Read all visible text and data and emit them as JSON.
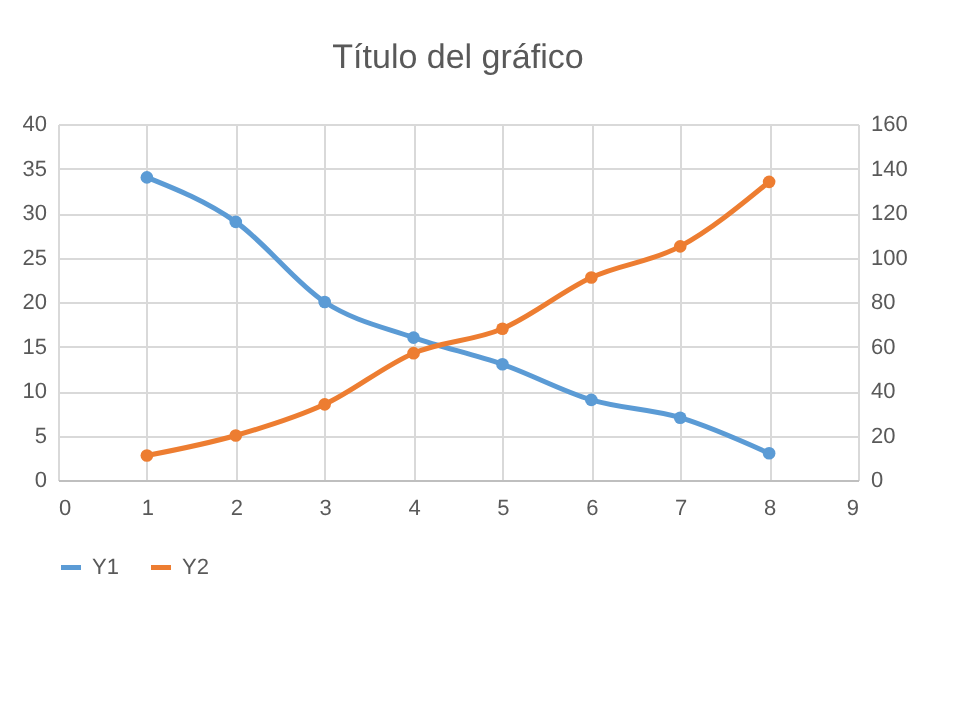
{
  "chart_data": {
    "type": "line",
    "title": "Título del gráfico",
    "x": [
      1,
      2,
      3,
      4,
      5,
      6,
      7,
      8
    ],
    "series": [
      {
        "name": "Y1",
        "color": "#5b9bd5",
        "values": [
          34,
          29,
          20,
          16,
          13,
          9,
          7,
          3
        ]
      },
      {
        "name": "Y2",
        "color": "#ed7d31",
        "axis": "y2",
        "values": [
          11,
          20,
          34,
          57,
          68,
          91,
          105,
          134
        ]
      }
    ],
    "xlim": [
      0,
      9
    ],
    "xticks": [
      0,
      1,
      2,
      3,
      4,
      5,
      6,
      7,
      8,
      9
    ],
    "ylim": [
      0,
      40
    ],
    "yticks": [
      0,
      5,
      10,
      15,
      20,
      25,
      30,
      35,
      40
    ],
    "y2lim": [
      0,
      160
    ],
    "y2ticks": [
      0,
      20,
      40,
      60,
      80,
      100,
      120,
      140,
      160
    ],
    "grid": true,
    "legend": "bottom",
    "marker": "circle",
    "line_style": "solid"
  }
}
